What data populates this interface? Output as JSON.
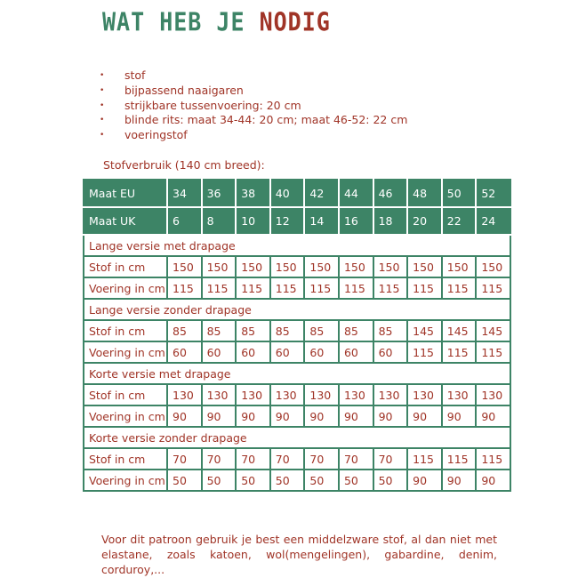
{
  "title": {
    "part1": "WAT HEB JE",
    "part2": "NODIG"
  },
  "colors": {
    "green": "#3d8466",
    "red": "#a03427"
  },
  "items": [
    "stof",
    "bijpassend naaigaren",
    "strijkbare tussenvoering: 20 cm",
    "blinde rits: maat 34-44: 20 cm; maat 46-52: 22 cm",
    "voeringstof"
  ],
  "usage_label": "Stofverbruik (140 cm breed):",
  "table": {
    "header_rows": [
      {
        "label": "Maat EU",
        "values": [
          "34",
          "36",
          "38",
          "40",
          "42",
          "44",
          "46",
          "48",
          "50",
          "52"
        ]
      },
      {
        "label": "Maat UK",
        "values": [
          "6",
          "8",
          "10",
          "12",
          "14",
          "16",
          "18",
          "20",
          "22",
          "24"
        ]
      }
    ],
    "sections": [
      {
        "title": "Lange versie met drapage",
        "rows": [
          {
            "label": "Stof in cm",
            "values": [
              "150",
              "150",
              "150",
              "150",
              "150",
              "150",
              "150",
              "150",
              "150",
              "150"
            ]
          },
          {
            "label": "Voering in cm",
            "values": [
              "115",
              "115",
              "115",
              "115",
              "115",
              "115",
              "115",
              "115",
              "115",
              "115"
            ]
          }
        ]
      },
      {
        "title": "Lange versie zonder drapage",
        "rows": [
          {
            "label": "Stof in cm",
            "values": [
              "85",
              "85",
              "85",
              "85",
              "85",
              "85",
              "85",
              "145",
              "145",
              "145"
            ]
          },
          {
            "label": "Voering in cm",
            "values": [
              "60",
              "60",
              "60",
              "60",
              "60",
              "60",
              "60",
              "115",
              "115",
              "115"
            ]
          }
        ]
      },
      {
        "title": "Korte versie met drapage",
        "rows": [
          {
            "label": "Stof in cm",
            "values": [
              "130",
              "130",
              "130",
              "130",
              "130",
              "130",
              "130",
              "130",
              "130",
              "130"
            ]
          },
          {
            "label": "Voering in cm",
            "values": [
              "90",
              "90",
              "90",
              "90",
              "90",
              "90",
              "90",
              "90",
              "90",
              "90"
            ]
          }
        ]
      },
      {
        "title": "Korte versie zonder drapage",
        "rows": [
          {
            "label": "Stof in cm",
            "values": [
              "70",
              "70",
              "70",
              "70",
              "70",
              "70",
              "70",
              "115",
              "115",
              "115"
            ]
          },
          {
            "label": "Voering in cm",
            "values": [
              "50",
              "50",
              "50",
              "50",
              "50",
              "50",
              "50",
              "90",
              "90",
              "90"
            ]
          }
        ]
      }
    ]
  },
  "footer": "Voor dit patroon gebruik je best een middelzware stof, al dan niet met elastane, zoals katoen, wol(mengelingen), gabardine, denim, corduroy,..."
}
